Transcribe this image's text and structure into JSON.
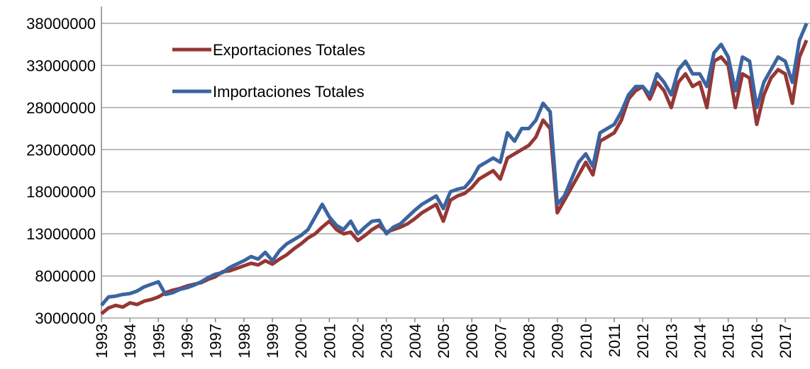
{
  "chart_data": {
    "type": "line",
    "x": [
      1993,
      1993.25,
      1993.5,
      1993.75,
      1994,
      1994.25,
      1994.5,
      1994.75,
      1995,
      1995.25,
      1995.5,
      1995.75,
      1996,
      1996.25,
      1996.5,
      1996.75,
      1997,
      1997.25,
      1997.5,
      1997.75,
      1998,
      1998.25,
      1998.5,
      1998.75,
      1999,
      1999.25,
      1999.5,
      1999.75,
      2000,
      2000.25,
      2000.5,
      2000.75,
      2001,
      2001.25,
      2001.5,
      2001.75,
      2002,
      2002.25,
      2002.5,
      2002.75,
      2003,
      2003.25,
      2003.5,
      2003.75,
      2004,
      2004.25,
      2004.5,
      2004.75,
      2005,
      2005.25,
      2005.5,
      2005.75,
      2006,
      2006.25,
      2006.5,
      2006.75,
      2007,
      2007.25,
      2007.5,
      2007.75,
      2008,
      2008.25,
      2008.5,
      2008.75,
      2009,
      2009.25,
      2009.5,
      2009.75,
      2010,
      2010.25,
      2010.5,
      2010.75,
      2011,
      2011.25,
      2011.5,
      2011.75,
      2012,
      2012.25,
      2012.5,
      2012.75,
      2013,
      2013.25,
      2013.5,
      2013.75,
      2014,
      2014.25,
      2014.5,
      2014.75,
      2015,
      2015.25,
      2015.5,
      2015.75,
      2016,
      2016.25,
      2016.5,
      2016.75,
      2017,
      2017.25,
      2017.5,
      2017.75
    ],
    "series": [
      {
        "name": "Exportaciones Totales",
        "color": "#953735",
        "values": [
          3500000,
          4200000,
          4500000,
          4300000,
          4800000,
          4600000,
          5000000,
          5200000,
          5500000,
          6000000,
          6300000,
          6500000,
          6800000,
          7000000,
          7200000,
          7600000,
          7900000,
          8500000,
          8600000,
          8900000,
          9200000,
          9500000,
          9300000,
          9800000,
          9400000,
          10000000,
          10500000,
          11200000,
          11800000,
          12500000,
          13000000,
          13800000,
          14500000,
          13500000,
          13000000,
          13200000,
          12200000,
          12800000,
          13500000,
          14000000,
          13200000,
          13500000,
          13800000,
          14200000,
          14800000,
          15500000,
          16000000,
          16500000,
          14500000,
          17000000,
          17500000,
          17800000,
          18500000,
          19500000,
          20000000,
          20500000,
          19500000,
          22000000,
          22500000,
          23000000,
          23500000,
          24500000,
          26500000,
          25500000,
          15500000,
          17000000,
          18500000,
          20000000,
          21500000,
          20000000,
          24000000,
          24500000,
          25000000,
          26500000,
          29000000,
          30000000,
          30500000,
          29000000,
          31000000,
          30000000,
          28000000,
          31000000,
          32000000,
          30500000,
          31000000,
          28000000,
          33500000,
          34000000,
          33000000,
          28000000,
          32000000,
          31500000,
          26000000,
          29500000,
          31500000,
          32500000,
          32000000,
          28500000,
          34000000,
          36000000
        ]
      },
      {
        "name": "Importaciones Totales",
        "color": "#3b64a0",
        "values": [
          4500000,
          5500000,
          5600000,
          5800000,
          5900000,
          6200000,
          6700000,
          7000000,
          7300000,
          5800000,
          6000000,
          6400000,
          6600000,
          6900000,
          7300000,
          7800000,
          8200000,
          8400000,
          9000000,
          9400000,
          9800000,
          10300000,
          10000000,
          10800000,
          9800000,
          11000000,
          11800000,
          12300000,
          12800000,
          13500000,
          15000000,
          16500000,
          15000000,
          14000000,
          13500000,
          14500000,
          13000000,
          13800000,
          14500000,
          14600000,
          13000000,
          13800000,
          14200000,
          15000000,
          15800000,
          16500000,
          17000000,
          17500000,
          16000000,
          18000000,
          18300000,
          18500000,
          19500000,
          21000000,
          21500000,
          22000000,
          21500000,
          25000000,
          24000000,
          25500000,
          25500000,
          26500000,
          28500000,
          27500000,
          16500000,
          17500000,
          19500000,
          21500000,
          22500000,
          21000000,
          25000000,
          25500000,
          26000000,
          27500000,
          29500000,
          30500000,
          30500000,
          29500000,
          32000000,
          31000000,
          29500000,
          32500000,
          33500000,
          32000000,
          32000000,
          30500000,
          34500000,
          35500000,
          34000000,
          30000000,
          34000000,
          33500000,
          28000000,
          31000000,
          32500000,
          34000000,
          33500000,
          31000000,
          36000000,
          38000000
        ]
      }
    ],
    "xlim": [
      1993,
      2017.87
    ],
    "xticks": [
      1993,
      1994,
      1995,
      1996,
      1997,
      1998,
      1999,
      2000,
      2001,
      2002,
      2003,
      2004,
      2005,
      2006,
      2007,
      2008,
      2009,
      2010,
      2011,
      2012,
      2013,
      2014,
      2015,
      2016,
      2017
    ],
    "ylim": [
      3000000,
      40000000
    ],
    "yticks": [
      3000000,
      8000000,
      13000000,
      18000000,
      23000000,
      28000000,
      33000000,
      38000000
    ],
    "grid": true,
    "legend": "top-left"
  }
}
